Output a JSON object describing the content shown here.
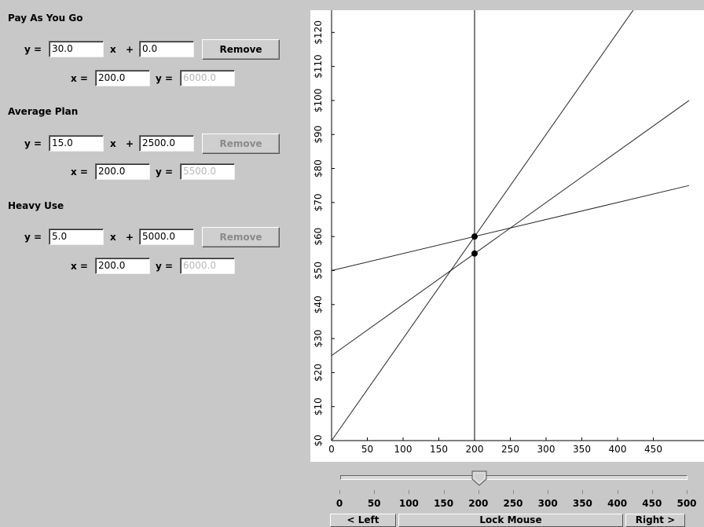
{
  "plans": [
    {
      "title": "Pay As You Go",
      "m": "30.0",
      "b": "0.0",
      "x": "200.0",
      "y": "6000.0",
      "remove_label": "Remove",
      "remove_enabled": true
    },
    {
      "title": "Average Plan",
      "m": "15.0",
      "b": "2500.0",
      "x": "200.0",
      "y": "5500.0",
      "remove_label": "Remove",
      "remove_enabled": false
    },
    {
      "title": "Heavy Use",
      "m": "5.0",
      "b": "5000.0",
      "x": "200.0",
      "y": "6000.0",
      "remove_label": "Remove",
      "remove_enabled": false
    }
  ],
  "labels": {
    "y_eq": "y =",
    "x_times": "x",
    "plus": "+",
    "x_eq": "x =",
    "y_eq2": "y ="
  },
  "chart_data": {
    "type": "line",
    "xlim": [
      0,
      500
    ],
    "ylim": [
      0,
      130
    ],
    "x_ticks": [
      "0",
      "50",
      "100",
      "150",
      "200",
      "250",
      "300",
      "350",
      "400",
      "450"
    ],
    "y_ticks": [
      "$0",
      "$10",
      "$20",
      "$30",
      "$40",
      "$50",
      "$60",
      "$70",
      "$80",
      "$90",
      "$100",
      "$110",
      "$120"
    ],
    "lines": [
      {
        "slope_per_x": 0.3,
        "intercept": 0
      },
      {
        "slope_per_x": 0.15,
        "intercept": 25
      },
      {
        "slope_per_x": 0.05,
        "intercept": 50
      }
    ],
    "vertical_line_x": 200,
    "points": [
      {
        "x": 200,
        "y": 60
      },
      {
        "x": 200,
        "y": 55
      }
    ],
    "line_color": "#000000",
    "grid": false
  },
  "slider": {
    "value": 200,
    "min": 0,
    "max": 500,
    "tick_labels": [
      "0",
      "50",
      "100",
      "150",
      "200",
      "250",
      "300",
      "350",
      "400",
      "450",
      "500"
    ]
  },
  "nav": {
    "left_label": "< Left",
    "lock_label": "Lock Mouse",
    "right_label": "Right >"
  }
}
